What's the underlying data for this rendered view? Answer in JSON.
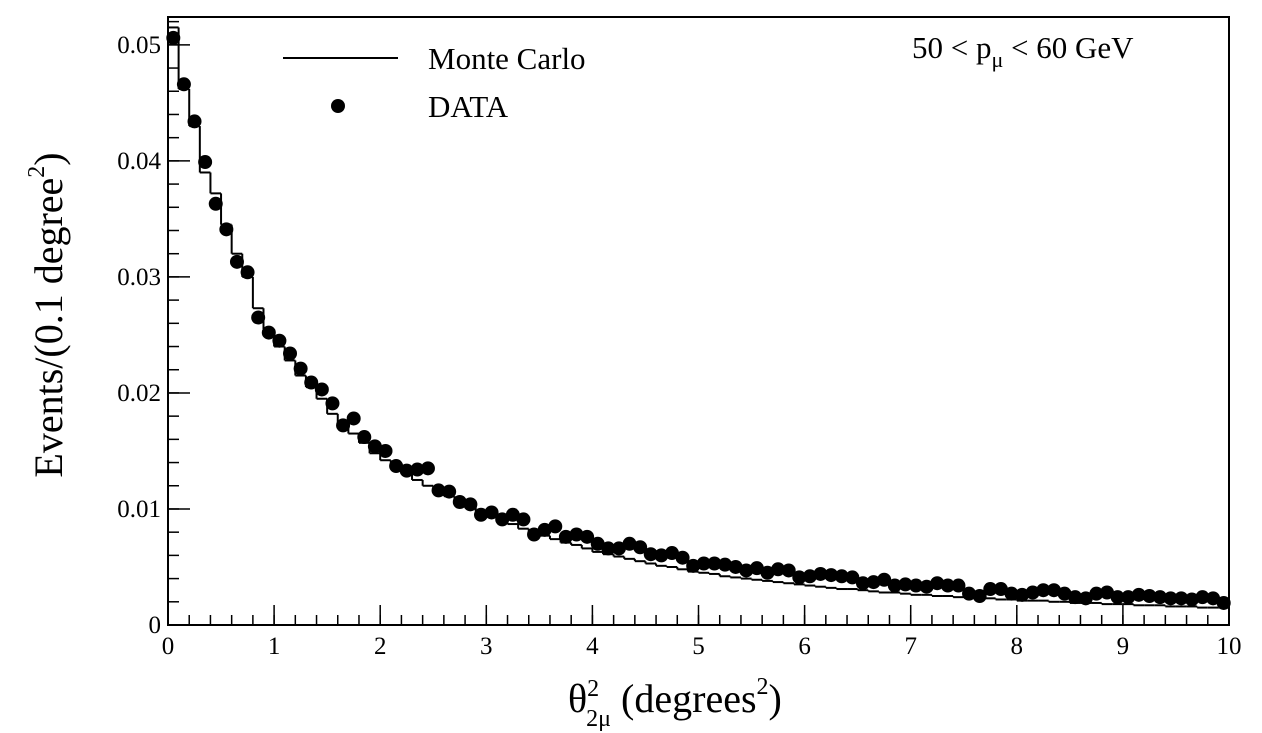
{
  "chart_data": {
    "type": "histogram",
    "annotation": [
      "50 < p",
      "μ",
      " < 60 GeV"
    ],
    "x_label": [
      "θ",
      "2",
      "2μ",
      " (degrees",
      "2",
      ")"
    ],
    "y_label": [
      "Events/(0.1 degree",
      "2",
      ")"
    ],
    "bins": [
      0,
      0.1,
      0.2,
      0.3,
      0.4,
      0.5,
      0.6,
      0.7,
      0.8,
      0.9,
      1,
      1.1,
      1.2,
      1.3,
      1.4,
      1.5,
      1.6,
      1.7,
      1.8,
      1.9,
      2,
      2.1,
      2.2,
      2.3,
      2.4,
      2.5,
      2.6,
      2.7,
      2.8,
      2.9,
      3,
      3.1,
      3.2,
      3.3,
      3.4,
      3.5,
      3.6,
      3.7,
      3.8,
      3.9,
      4,
      4.1,
      4.2,
      4.3,
      4.4,
      4.5,
      4.6,
      4.7,
      4.8,
      4.9,
      5,
      5.1,
      5.2,
      5.3,
      5.4,
      5.5,
      5.6,
      5.7,
      5.8,
      5.9,
      6,
      6.1,
      6.2,
      6.3,
      6.4,
      6.5,
      6.6,
      6.7,
      6.8,
      6.9,
      7,
      7.1,
      7.2,
      7.3,
      7.4,
      7.5,
      7.6,
      7.7,
      7.8,
      7.9,
      8,
      8.1,
      8.2,
      8.3,
      8.4,
      8.5,
      8.6,
      8.7,
      8.8,
      8.9,
      9,
      9.1,
      9.2,
      9.3,
      9.4,
      9.5,
      9.6,
      9.7,
      9.8,
      9.9,
      10
    ],
    "series": [
      {
        "name": "Monte Carlo",
        "color": "#000000",
        "style": "step",
        "values": [
          0.0515,
          0.0462,
          0.043,
          0.039,
          0.0372,
          0.0345,
          0.032,
          0.03,
          0.0273,
          0.0255,
          0.024,
          0.0228,
          0.0215,
          0.0205,
          0.0195,
          0.0182,
          0.017,
          0.0165,
          0.0157,
          0.0148,
          0.0142,
          0.0135,
          0.013,
          0.0125,
          0.012,
          0.0115,
          0.0111,
          0.0106,
          0.0102,
          0.0098,
          0.0094,
          0.009,
          0.0087,
          0.0083,
          0.008,
          0.0077,
          0.0074,
          0.0071,
          0.0069,
          0.0066,
          0.0063,
          0.0061,
          0.0059,
          0.0057,
          0.0055,
          0.0053,
          0.0051,
          0.005,
          0.0048,
          0.0046,
          0.0045,
          0.0044,
          0.0042,
          0.0041,
          0.004,
          0.0039,
          0.0038,
          0.0037,
          0.0036,
          0.0035,
          0.0034,
          0.0033,
          0.0032,
          0.0031,
          0.0031,
          0.003,
          0.0029,
          0.0028,
          0.0028,
          0.0027,
          0.0026,
          0.0026,
          0.0025,
          0.0025,
          0.0024,
          0.0024,
          0.0023,
          0.0023,
          0.0022,
          0.0022,
          0.0021,
          0.0021,
          0.0021,
          0.002,
          0.002,
          0.0019,
          0.0019,
          0.0019,
          0.0018,
          0.0018,
          0.0018,
          0.0017,
          0.0017,
          0.0017,
          0.0016,
          0.0016,
          0.0016,
          0.0015,
          0.0015,
          0.0015
        ]
      },
      {
        "name": "DATA",
        "color": "#000000",
        "style": "markers",
        "values": [
          0.0506,
          0.0466,
          0.0434,
          0.0399,
          0.0363,
          0.0341,
          0.0313,
          0.0304,
          0.0265,
          0.0252,
          0.0245,
          0.0234,
          0.0221,
          0.0209,
          0.0203,
          0.0191,
          0.0172,
          0.0178,
          0.0162,
          0.0154,
          0.015,
          0.0137,
          0.0133,
          0.0134,
          0.0135,
          0.0116,
          0.0115,
          0.0106,
          0.0104,
          0.0095,
          0.0097,
          0.0091,
          0.0095,
          0.0091,
          0.0078,
          0.0082,
          0.0085,
          0.0076,
          0.0078,
          0.0076,
          0.007,
          0.0066,
          0.0066,
          0.007,
          0.0067,
          0.0061,
          0.006,
          0.0062,
          0.0058,
          0.0051,
          0.0053,
          0.0053,
          0.0052,
          0.005,
          0.0047,
          0.0049,
          0.0045,
          0.0048,
          0.0047,
          0.0041,
          0.0042,
          0.0044,
          0.0043,
          0.0042,
          0.0041,
          0.0036,
          0.0037,
          0.0039,
          0.0034,
          0.0035,
          0.0034,
          0.0033,
          0.0036,
          0.0034,
          0.0034,
          0.0027,
          0.0025,
          0.0031,
          0.0031,
          0.0027,
          0.0026,
          0.0028,
          0.003,
          0.003,
          0.0027,
          0.0024,
          0.0023,
          0.0027,
          0.0028,
          0.0024,
          0.0024,
          0.0026,
          0.0025,
          0.0024,
          0.0023,
          0.0023,
          0.0022,
          0.0024,
          0.0023,
          0.0019
        ]
      }
    ],
    "xlim": [
      0,
      10
    ],
    "ylim": [
      0,
      0.0524
    ],
    "xticks": [
      0,
      1,
      2,
      3,
      4,
      5,
      6,
      7,
      8,
      9,
      10
    ],
    "yticks": [
      0,
      0.01,
      0.02,
      0.03,
      0.04,
      0.05
    ]
  }
}
